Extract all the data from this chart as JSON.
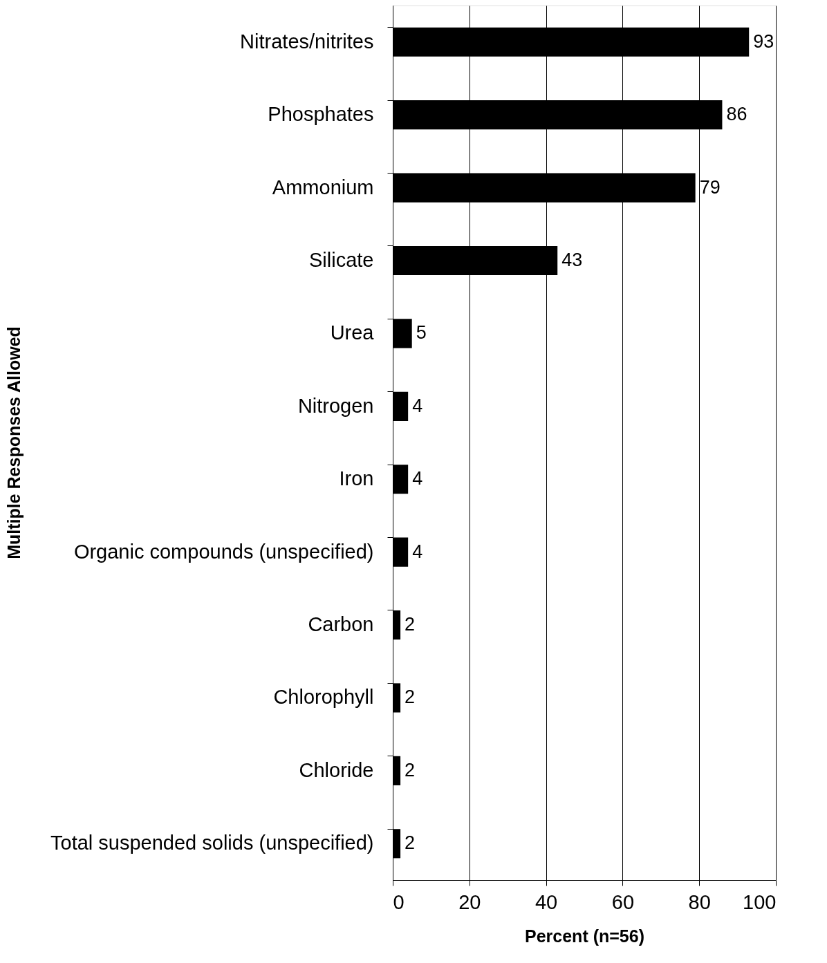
{
  "chart_data": {
    "type": "bar",
    "orientation": "horizontal",
    "xlabel": "Percent (n=56)",
    "ylabel": "Multiple Responses Allowed",
    "categories": [
      "Nitrates/nitrites",
      "Phosphates",
      "Ammonium",
      "Silicate",
      "Urea",
      "Nitrogen",
      "Iron",
      "Organic compounds (unspecified)",
      "Carbon",
      "Chlorophyll",
      "Chloride",
      "Total suspended solids (unspecified)"
    ],
    "values": [
      93,
      86,
      79,
      43,
      5,
      4,
      4,
      4,
      2,
      2,
      2,
      2
    ],
    "color": "#000000",
    "xlim": [
      0,
      100
    ],
    "xticks": [
      0,
      20,
      40,
      60,
      80,
      100
    ],
    "grid": "x",
    "data_labels": true
  }
}
